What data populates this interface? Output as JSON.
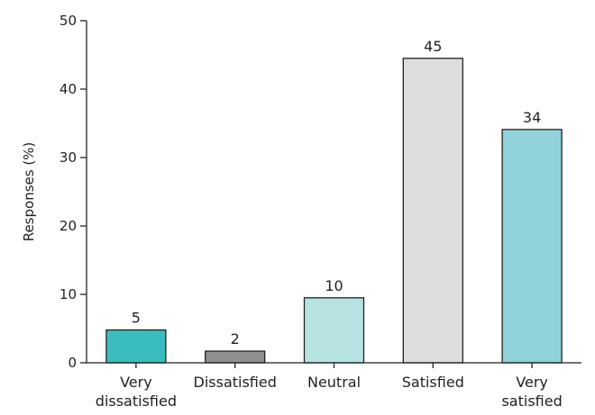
{
  "chart_data": {
    "type": "bar",
    "title": "",
    "xlabel": "",
    "ylabel": "Responses (%)",
    "ylim": [
      0,
      50
    ],
    "yticks": [
      0,
      10,
      20,
      30,
      40,
      50
    ],
    "grid": false,
    "categories": [
      [
        "Very",
        "dissatisfied"
      ],
      [
        "Dissatisfied"
      ],
      [
        "Neutral"
      ],
      [
        "Satisfied"
      ],
      [
        "Very",
        "satisfied"
      ]
    ],
    "values": [
      4.8,
      1.7,
      9.5,
      44.5,
      34.1
    ],
    "value_labels": [
      "5",
      "2",
      "10",
      "45",
      "34"
    ],
    "colors": [
      "#3bbdbf",
      "#8e8f91",
      "#b7e3e3",
      "#dcdddf",
      "#8fd3d8"
    ]
  }
}
